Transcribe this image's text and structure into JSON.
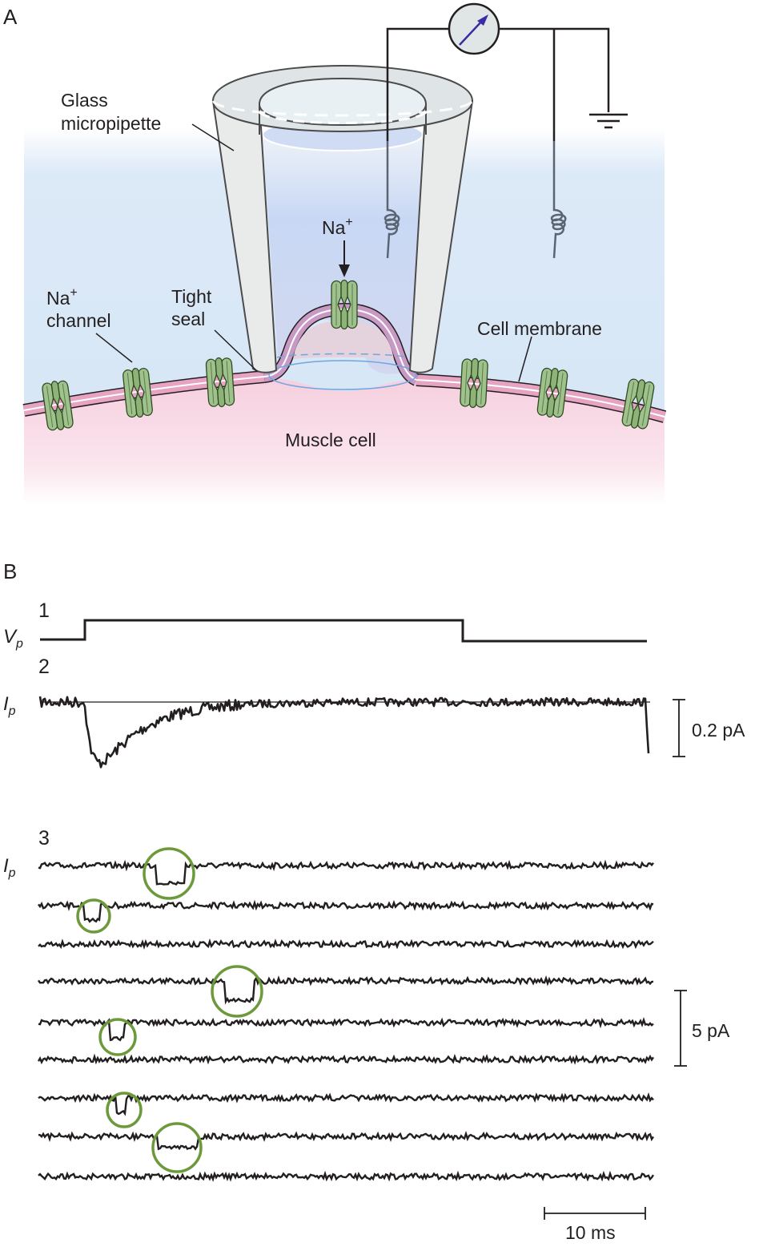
{
  "panel_a": {
    "letter": "A",
    "pipette_label_line1": "Glass",
    "pipette_label_line2": "micropipette",
    "ion_label": "Na",
    "ion_charge": "+",
    "channel_label_line1": "Na",
    "channel_label_charge": "+",
    "channel_label_line2": "channel",
    "seal_label_line1": "Tight",
    "seal_label_line2": "seal",
    "membrane_label": "Cell membrane",
    "cell_label": "Muscle cell"
  },
  "panel_b": {
    "letter": "B",
    "trace1_number": "1",
    "trace1_symbol": "V",
    "trace1_subscript": "p",
    "trace2_number": "2",
    "trace2_symbol": "I",
    "trace2_subscript": "p",
    "trace3_number": "3",
    "trace3_symbol": "I",
    "trace3_subscript": "p",
    "scale_current_small": "0.2 pA",
    "scale_current_large": "5 pA",
    "scale_time": "10 ms"
  },
  "colors": {
    "bath": "#d7e7f7",
    "pipette_solution": "#c9d8f4",
    "cell": "#f8dbe6",
    "membrane": "#e7a3c2",
    "channel": "#9fc28c",
    "glass": "#e9ebeb",
    "highlight_circle": "#6c9a3b",
    "meter_needle": "#3b2aa6"
  }
}
